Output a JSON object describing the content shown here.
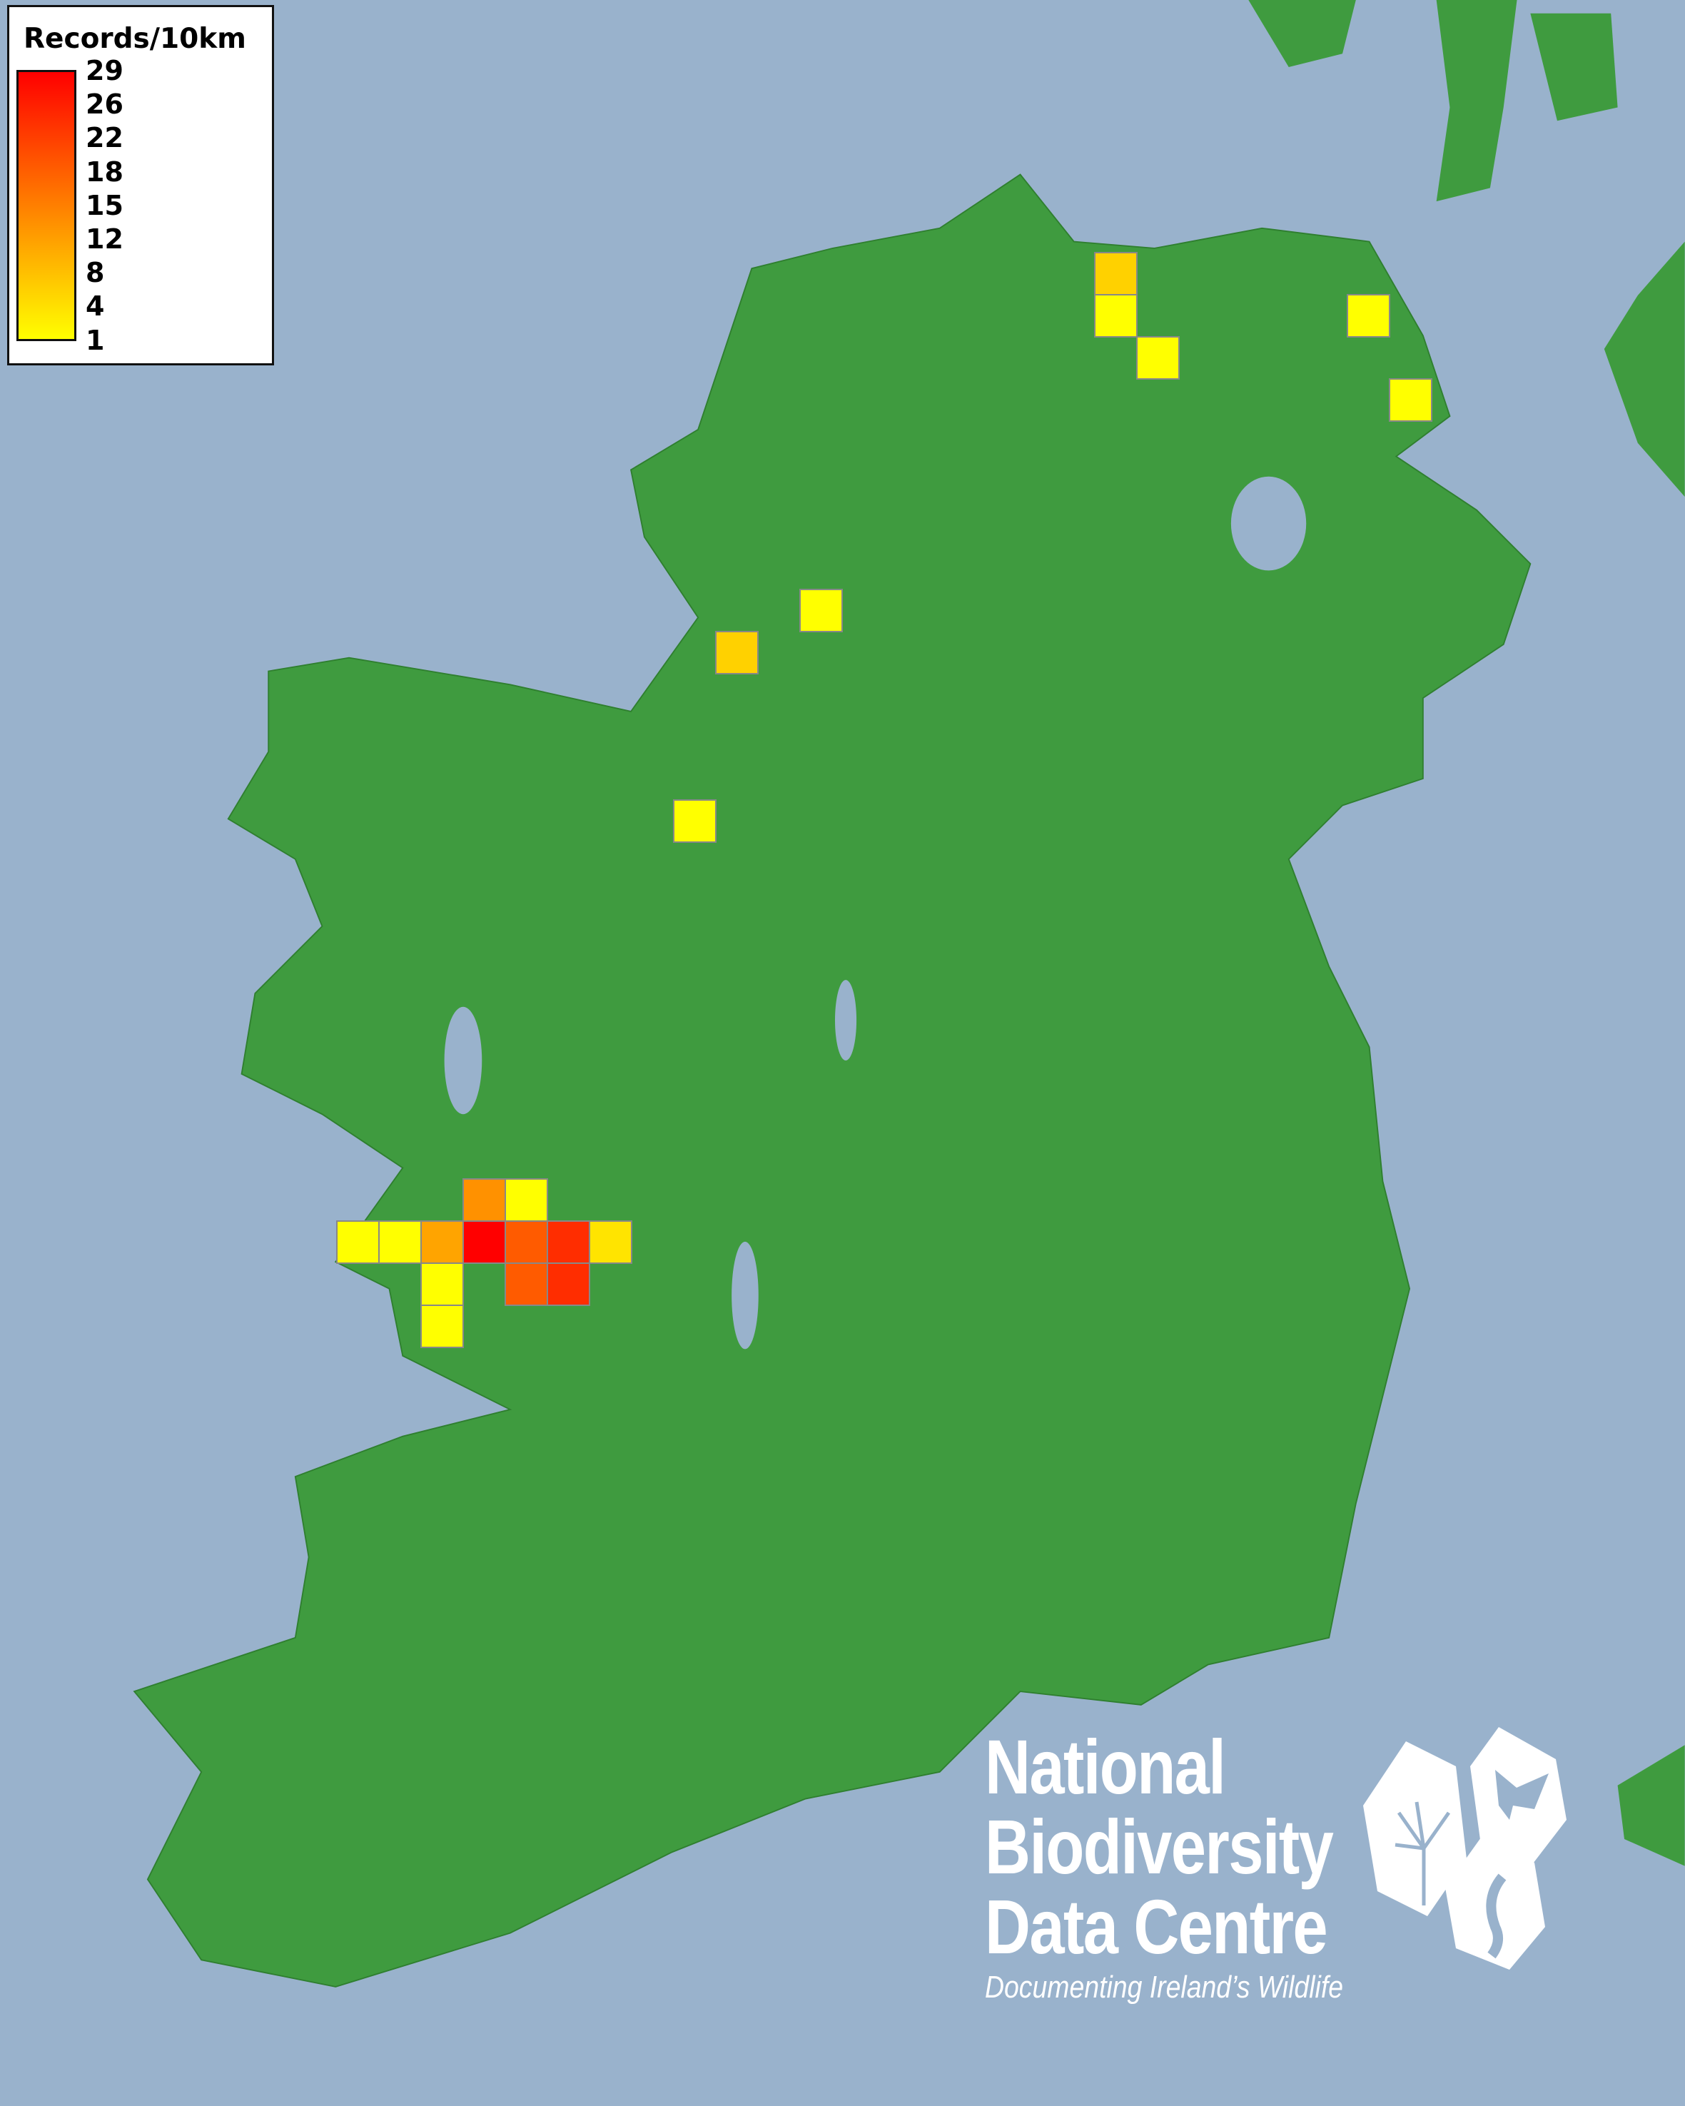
{
  "colors": {
    "sea": "#99b2cc",
    "land": "#3f9b3f",
    "scale_low": "#ffff00",
    "scale_mid": "#ff8c00",
    "scale_high": "#ff0000",
    "cell_border": "#888888"
  },
  "legend": {
    "title": "Records/10km",
    "ticks": [
      "29",
      "26",
      "22",
      "18",
      "15",
      "12",
      "8",
      "4",
      "1"
    ],
    "range": [
      1,
      29
    ]
  },
  "records_grid": {
    "unit": "10km squares",
    "values": [
      13,
      1,
      1,
      1,
      11,
      29,
      19,
      24,
      4,
      1,
      19,
      24,
      1,
      6,
      1,
      1,
      1,
      1,
      1,
      6,
      1
    ]
  },
  "logo": {
    "lines": [
      "National",
      "Biodiversity",
      "Data Centre"
    ],
    "tagline": "Documenting Ireland’s Wildlife",
    "icons": [
      "plant-icon",
      "butterfly-icon",
      "seahorse-icon"
    ]
  }
}
